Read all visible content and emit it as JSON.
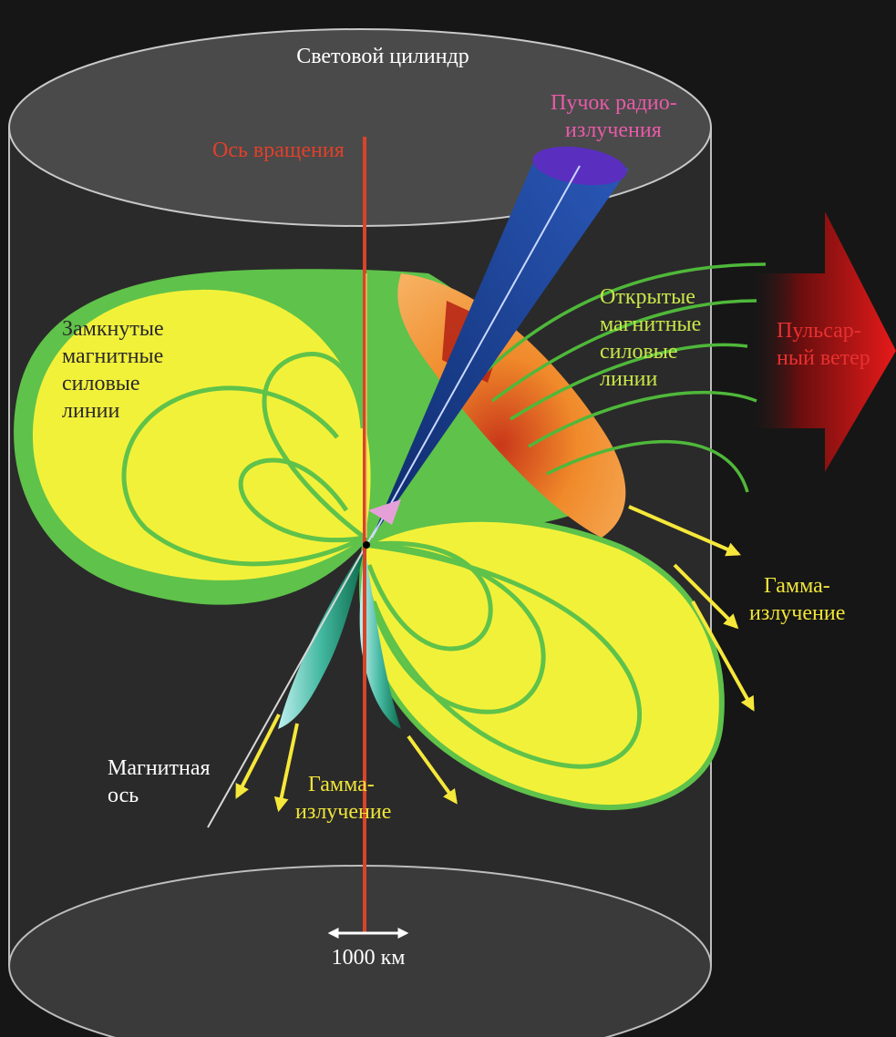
{
  "labels": {
    "light_cylinder": "Световой цилиндр",
    "radio_beam": [
      "Пучок радио-",
      "излучения"
    ],
    "rotation_axis": "Ось вращения",
    "open_lines": [
      "Открытые",
      "магнитные",
      "силовые",
      "линии"
    ],
    "pulsar_wind": [
      "Пульсар-",
      "ный ветер"
    ],
    "closed_lines": [
      "Замкнутые",
      "магнитные",
      "силовые",
      "линии"
    ],
    "gamma_right": [
      "Гамма-",
      "излучение"
    ],
    "magnetic_axis": [
      "Магнитная",
      "ось"
    ],
    "gamma_bottom": [
      "Гамма-",
      "излучение"
    ],
    "scale": "1000 км"
  },
  "colors": {
    "background": "#1a1a1a",
    "cylinder_edge": "#b8b8b8",
    "rotation_axis": "#e0402a",
    "lobe_yellow": "#f4f23a",
    "lobe_green": "#5fc24a",
    "gap_orange": "#e9781e",
    "beam_blue": "#1a3d8c",
    "beam_cap": "#5a2fc0",
    "wind_arrow": "#e01818",
    "text_white": "#ffffff",
    "text_pink": "#e85aa8",
    "text_red": "#e03a2a",
    "text_yellowgreen": "#c8e64a",
    "text_yellow": "#f0e43a"
  }
}
